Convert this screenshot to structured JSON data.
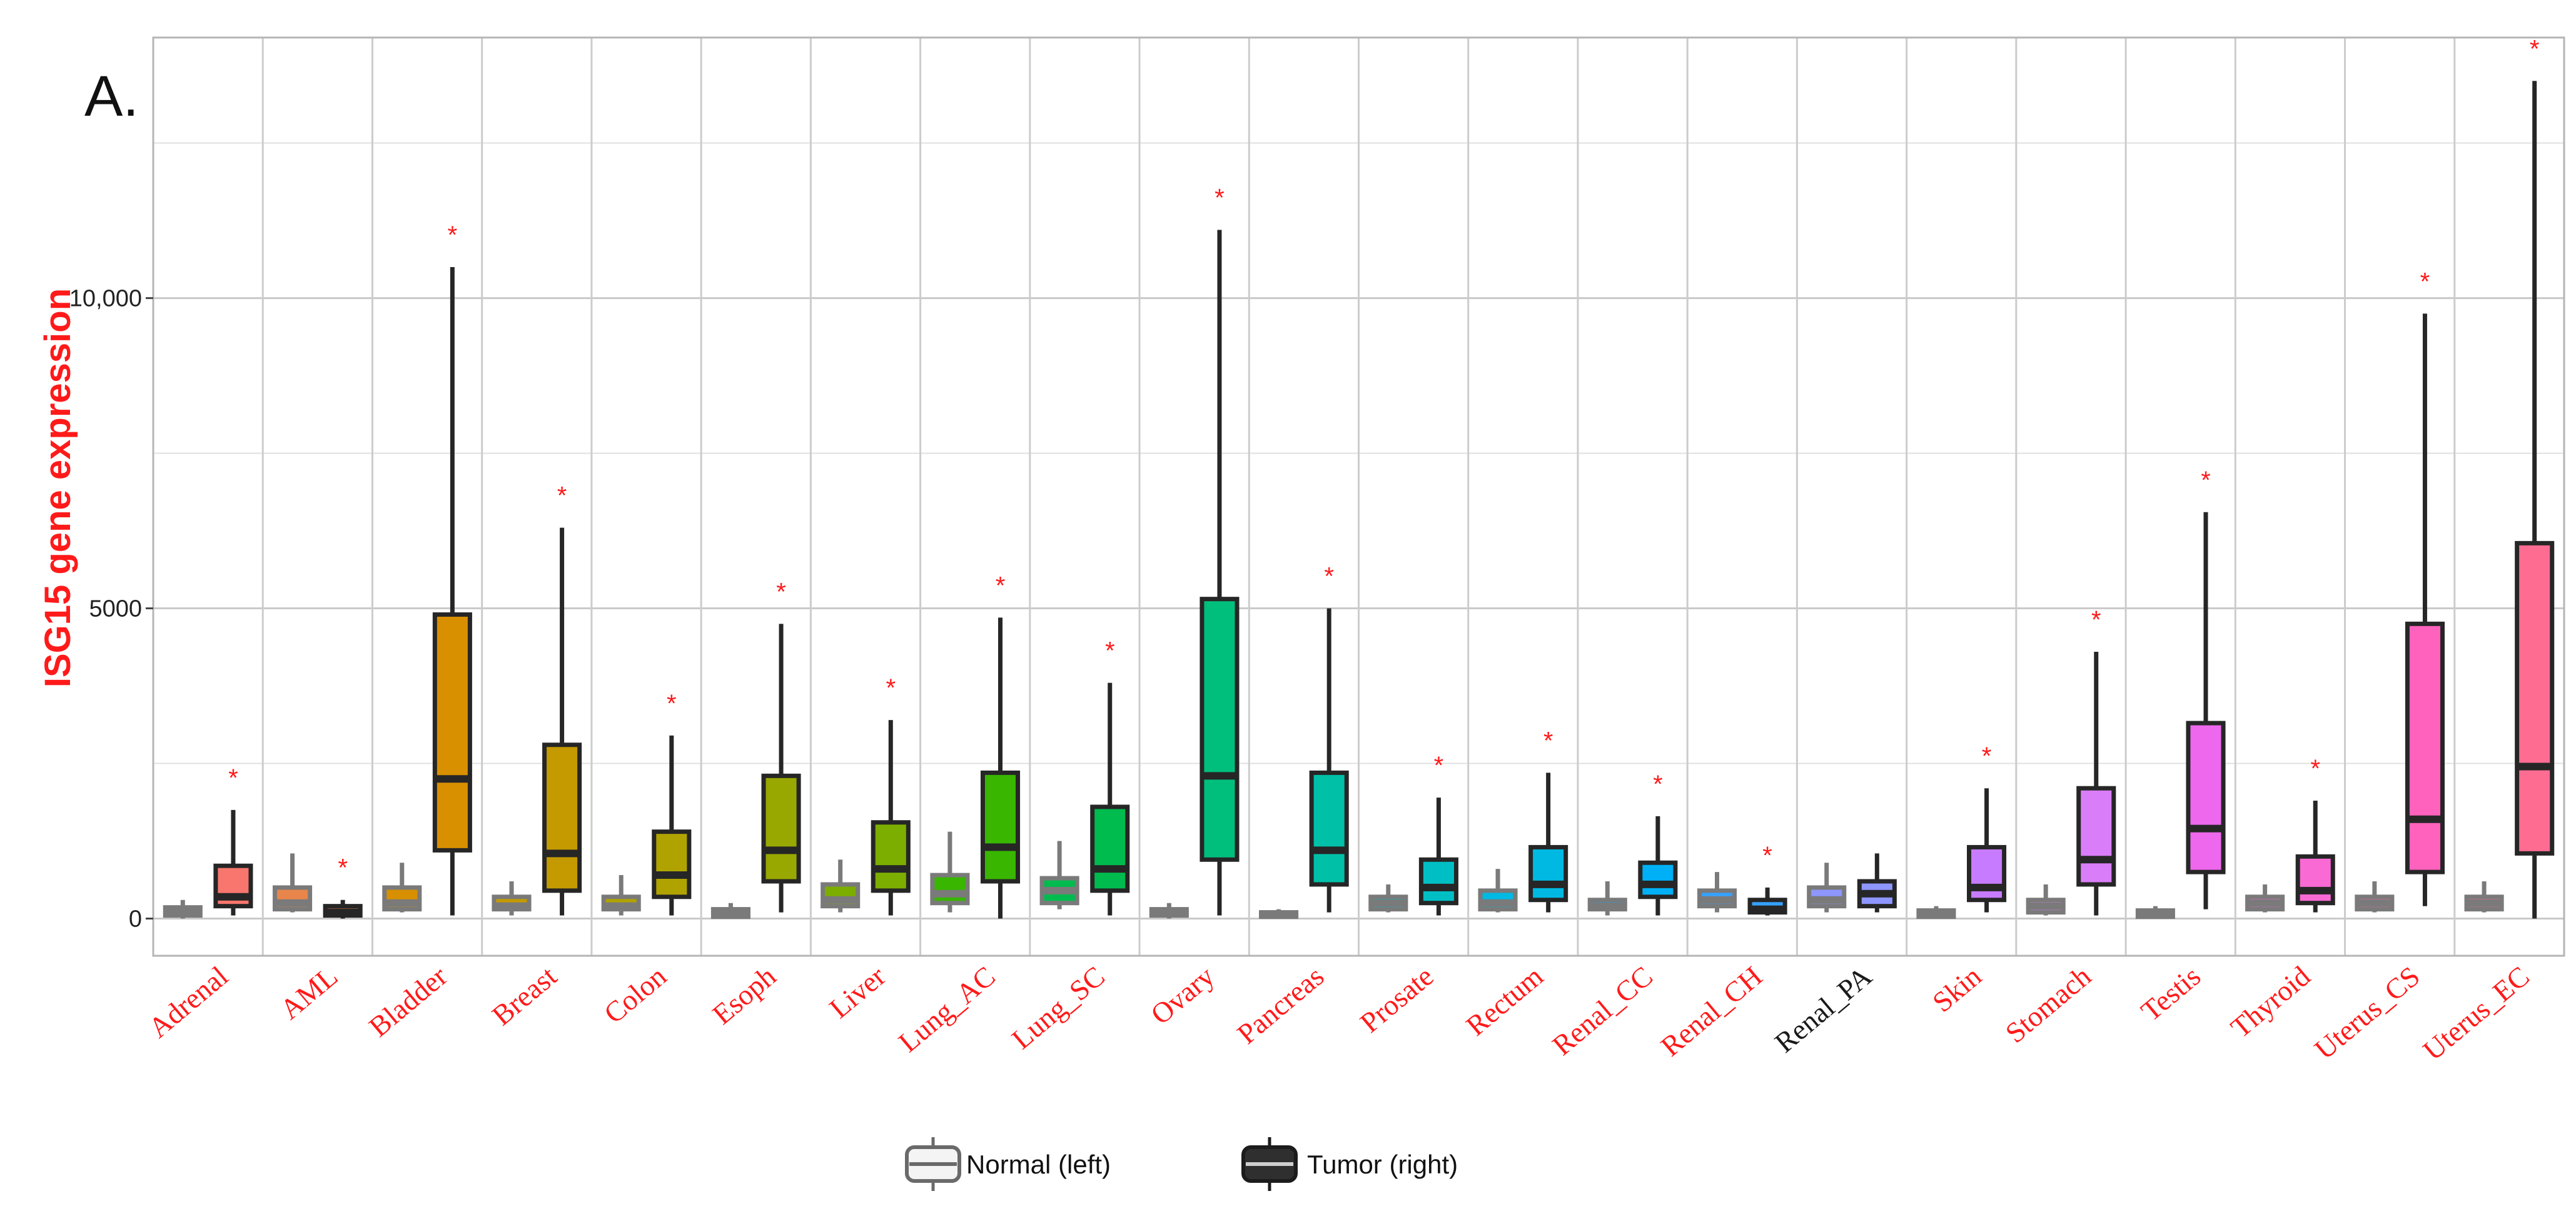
{
  "chart_data": {
    "type": "boxplot",
    "panel_label": "A.",
    "title": "",
    "xlabel": "",
    "ylabel": "ISG15 gene expression",
    "ylim": [
      -600,
      14200
    ],
    "yticks": [
      0,
      5000,
      10000
    ],
    "ytick_labels": [
      "0",
      "5000",
      "10,000"
    ],
    "grid": true,
    "significance_marker": "*",
    "series_names": [
      "Normal (left)",
      "Tumor (right)"
    ],
    "legend": {
      "position": "bottom",
      "entries": [
        {
          "label": "Normal (left)",
          "style": "light"
        },
        {
          "label": "Tumor (right)",
          "style": "dark"
        }
      ]
    },
    "categories": [
      {
        "name": "Adrenal",
        "color": "#f8766d",
        "significant": true,
        "normal": {
          "min": 0,
          "q1": 50,
          "median": 100,
          "q3": 180,
          "max": 300
        },
        "tumor": {
          "min": 50,
          "q1": 200,
          "median": 350,
          "q3": 850,
          "max": 1750
        }
      },
      {
        "name": "AML",
        "color": "#e8854a",
        "significant": true,
        "normal": {
          "min": 100,
          "q1": 150,
          "median": 250,
          "q3": 500,
          "max": 1050
        },
        "tumor": {
          "min": 0,
          "q1": 50,
          "median": 100,
          "q3": 200,
          "max": 300
        }
      },
      {
        "name": "Bladder",
        "color": "#d89000",
        "significant": true,
        "normal": {
          "min": 100,
          "q1": 150,
          "median": 250,
          "q3": 500,
          "max": 900
        },
        "tumor": {
          "min": 50,
          "q1": 1100,
          "median": 2250,
          "q3": 4900,
          "max": 10500
        }
      },
      {
        "name": "Breast",
        "color": "#c49a00",
        "significant": true,
        "normal": {
          "min": 50,
          "q1": 150,
          "median": 200,
          "q3": 350,
          "max": 600
        },
        "tumor": {
          "min": 50,
          "q1": 450,
          "median": 1050,
          "q3": 2800,
          "max": 6300
        }
      },
      {
        "name": "Colon",
        "color": "#b0a300",
        "significant": true,
        "normal": {
          "min": 50,
          "q1": 150,
          "median": 200,
          "q3": 350,
          "max": 700
        },
        "tumor": {
          "min": 50,
          "q1": 350,
          "median": 700,
          "q3": 1400,
          "max": 2950
        }
      },
      {
        "name": "Esoph",
        "color": "#99a800",
        "significant": true,
        "normal": {
          "min": 0,
          "q1": 30,
          "median": 70,
          "q3": 150,
          "max": 250
        },
        "tumor": {
          "min": 100,
          "q1": 600,
          "median": 1100,
          "q3": 2300,
          "max": 4750
        }
      },
      {
        "name": "Liver",
        "color": "#7cae00",
        "significant": true,
        "normal": {
          "min": 100,
          "q1": 200,
          "median": 300,
          "q3": 550,
          "max": 950
        },
        "tumor": {
          "min": 50,
          "q1": 450,
          "median": 800,
          "q3": 1550,
          "max": 3200
        }
      },
      {
        "name": "Lung_AC",
        "color": "#39b600",
        "significant": true,
        "normal": {
          "min": 100,
          "q1": 250,
          "median": 400,
          "q3": 700,
          "max": 1400
        },
        "tumor": {
          "min": 0,
          "q1": 600,
          "median": 1150,
          "q3": 2350,
          "max": 4850
        }
      },
      {
        "name": "Lung_SC",
        "color": "#00bb4e",
        "significant": true,
        "normal": {
          "min": 150,
          "q1": 250,
          "median": 450,
          "q3": 650,
          "max": 1250
        },
        "tumor": {
          "min": 50,
          "q1": 450,
          "median": 800,
          "q3": 1800,
          "max": 3800
        }
      },
      {
        "name": "Ovary",
        "color": "#00bf7d",
        "significant": true,
        "normal": {
          "min": 0,
          "q1": 50,
          "median": 100,
          "q3": 150,
          "max": 250
        },
        "tumor": {
          "min": 50,
          "q1": 950,
          "median": 2300,
          "q3": 5150,
          "max": 11100
        }
      },
      {
        "name": "Pancreas",
        "color": "#00c0a8",
        "significant": true,
        "normal": {
          "min": 0,
          "q1": 30,
          "median": 60,
          "q3": 100,
          "max": 150
        },
        "tumor": {
          "min": 100,
          "q1": 550,
          "median": 1100,
          "q3": 2350,
          "max": 5000
        }
      },
      {
        "name": "Prosate",
        "color": "#00bfc4",
        "significant": true,
        "normal": {
          "min": 100,
          "q1": 150,
          "median": 250,
          "q3": 350,
          "max": 550
        },
        "tumor": {
          "min": 50,
          "q1": 250,
          "median": 500,
          "q3": 950,
          "max": 1950
        }
      },
      {
        "name": "Rectum",
        "color": "#00b9e3",
        "significant": true,
        "normal": {
          "min": 100,
          "q1": 150,
          "median": 250,
          "q3": 450,
          "max": 800
        },
        "tumor": {
          "min": 100,
          "q1": 300,
          "median": 550,
          "q3": 1150,
          "max": 2350
        }
      },
      {
        "name": "Renal_CC",
        "color": "#00b0f6",
        "significant": true,
        "normal": {
          "min": 50,
          "q1": 150,
          "median": 200,
          "q3": 300,
          "max": 600
        },
        "tumor": {
          "min": 50,
          "q1": 350,
          "median": 550,
          "q3": 900,
          "max": 1650
        }
      },
      {
        "name": "Renal_CH",
        "color": "#35a2ff",
        "significant": true,
        "normal": {
          "min": 100,
          "q1": 200,
          "median": 300,
          "q3": 450,
          "max": 750
        },
        "tumor": {
          "min": 50,
          "q1": 100,
          "median": 150,
          "q3": 300,
          "max": 500
        }
      },
      {
        "name": "Renal_PA",
        "color": "#8e96ff",
        "significant": false,
        "normal": {
          "min": 100,
          "q1": 200,
          "median": 300,
          "q3": 500,
          "max": 900
        },
        "tumor": {
          "min": 100,
          "q1": 200,
          "median": 400,
          "q3": 600,
          "max": 1050
        }
      },
      {
        "name": "Skin",
        "color": "#c77cff",
        "significant": true,
        "normal": {
          "min": 0,
          "q1": 30,
          "median": 80,
          "q3": 130,
          "max": 200
        },
        "tumor": {
          "min": 100,
          "q1": 300,
          "median": 500,
          "q3": 1150,
          "max": 2100
        }
      },
      {
        "name": "Stomach",
        "color": "#d97ef8",
        "significant": true,
        "normal": {
          "min": 50,
          "q1": 100,
          "median": 200,
          "q3": 300,
          "max": 550
        },
        "tumor": {
          "min": 50,
          "q1": 550,
          "median": 950,
          "q3": 2100,
          "max": 4300
        }
      },
      {
        "name": "Testis",
        "color": "#ed68ed",
        "significant": true,
        "normal": {
          "min": 0,
          "q1": 30,
          "median": 80,
          "q3": 130,
          "max": 200
        },
        "tumor": {
          "min": 150,
          "q1": 750,
          "median": 1450,
          "q3": 3150,
          "max": 6550
        }
      },
      {
        "name": "Thyroid",
        "color": "#fa6ad4",
        "significant": true,
        "normal": {
          "min": 100,
          "q1": 150,
          "median": 250,
          "q3": 350,
          "max": 550
        },
        "tumor": {
          "min": 100,
          "q1": 250,
          "median": 450,
          "q3": 1000,
          "max": 1900
        }
      },
      {
        "name": "Uterus_CS",
        "color": "#ff62bc",
        "significant": true,
        "normal": {
          "min": 100,
          "q1": 150,
          "median": 250,
          "q3": 350,
          "max": 600
        },
        "tumor": {
          "min": 200,
          "q1": 750,
          "median": 1600,
          "q3": 4750,
          "max": 9750
        }
      },
      {
        "name": "Uterus_EC",
        "color": "#ff6c91",
        "significant": true,
        "normal": {
          "min": 100,
          "q1": 150,
          "median": 250,
          "q3": 350,
          "max": 600
        },
        "tumor": {
          "min": 0,
          "q1": 1050,
          "median": 2450,
          "q3": 6050,
          "max": 13500
        }
      }
    ]
  }
}
